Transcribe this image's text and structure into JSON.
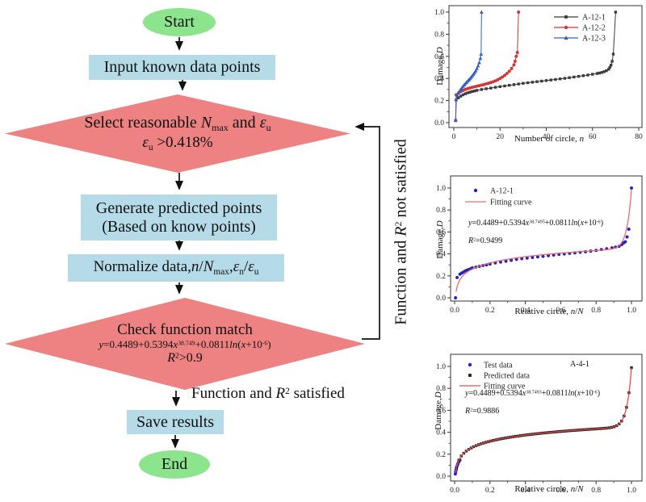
{
  "figure": {
    "flowchart": {
      "start": "Start",
      "input": "Input known data points",
      "decision1_line1_html": "Select reasonable <i>N</i><sub>max</sub> and <i>ε</i><sub>u</sub>",
      "decision1_line2_html": "<i>ε</i><sub>u</sub> &gt;0.418%",
      "generate_line1": "Generate predicted points",
      "generate_line2": "(Based on know points)",
      "normalize_html": "Normalize data,<i>n</i>/<i>N</i><sub>max</sub>,<i>ε</i><sub>n</sub>/<i>ε</i><sub>u</sub>",
      "decision2_line1": "Check function match",
      "decision2_eq_html": "<i>y</i>=0.4489+0.5394<i>x</i><sup>38.749</sup>+0.0811<i>ln</i>(<i>x</i>+10<sup>-6</sup>)",
      "decision2_r2_html": "<i>R</i><sup>2</sup>&gt;0.9",
      "satisfied_html": "Function and <i>R</i><sup>2</sup> satisfied",
      "not_satisfied_html": "Function and <i>R</i><sup>2</sup> not satisfied",
      "save": "Save results",
      "end": "End",
      "colors": {
        "terminal": "#8CE48C",
        "process": "#B5DBE9",
        "decision": "#EE8181"
      }
    },
    "chart_data": [
      {
        "type": "scatter",
        "title": "",
        "xlabel_html": "Number of circle, <i>n</i>",
        "ylabel_html": "Damage,<i>D</i>",
        "xlim": [
          0,
          80
        ],
        "ylim": [
          0,
          1
        ],
        "xticks": [
          0,
          20,
          40,
          60,
          80
        ],
        "xminor": [
          10,
          30,
          50,
          70
        ],
        "yticks": [
          0,
          0.2,
          0.4,
          0.6,
          0.8,
          1
        ],
        "yminor": [
          0.1,
          0.3,
          0.5,
          0.7,
          0.9
        ],
        "xdec": 0,
        "ydec": 1,
        "grid": false,
        "legend_position": "top-right",
        "series": [
          {
            "name": "A-12-1",
            "color": "#3b3b3b",
            "marker": "square",
            "line": true,
            "points": [
              [
                0.8,
                0.02
              ],
              [
                1,
                0.205
              ],
              [
                2,
                0.225
              ],
              [
                3,
                0.24
              ],
              [
                4,
                0.252
              ],
              [
                5,
                0.262
              ],
              [
                6,
                0.27
              ],
              [
                7,
                0.276
              ],
              [
                8,
                0.282
              ],
              [
                9,
                0.287
              ],
              [
                10,
                0.292
              ],
              [
                12,
                0.3
              ],
              [
                14,
                0.307
              ],
              [
                16,
                0.313
              ],
              [
                18,
                0.32
              ],
              [
                20,
                0.326
              ],
              [
                22,
                0.332
              ],
              [
                24,
                0.338
              ],
              [
                26,
                0.344
              ],
              [
                28,
                0.35
              ],
              [
                30,
                0.356
              ],
              [
                32,
                0.361
              ],
              [
                34,
                0.366
              ],
              [
                36,
                0.371
              ],
              [
                38,
                0.376
              ],
              [
                40,
                0.381
              ],
              [
                42,
                0.386
              ],
              [
                44,
                0.391
              ],
              [
                46,
                0.396
              ],
              [
                48,
                0.401
              ],
              [
                50,
                0.407
              ],
              [
                52,
                0.413
              ],
              [
                54,
                0.419
              ],
              [
                56,
                0.425
              ],
              [
                58,
                0.431
              ],
              [
                60,
                0.438
              ],
              [
                62,
                0.445
              ],
              [
                63,
                0.449
              ],
              [
                64,
                0.454
              ],
              [
                65,
                0.461
              ],
              [
                66,
                0.47
              ],
              [
                67,
                0.483
              ],
              [
                67.5,
                0.5
              ],
              [
                68,
                0.52
              ],
              [
                68.5,
                0.555
              ],
              [
                69,
                0.62
              ],
              [
                70,
                1.0
              ]
            ]
          },
          {
            "name": "A-12-2",
            "color": "#d53434",
            "marker": "circle",
            "line": true,
            "points": [
              [
                0.8,
                0.02
              ],
              [
                1,
                0.252
              ],
              [
                2,
                0.268
              ],
              [
                3,
                0.281
              ],
              [
                4,
                0.292
              ],
              [
                5,
                0.301
              ],
              [
                6,
                0.308
              ],
              [
                7,
                0.314
              ],
              [
                8,
                0.32
              ],
              [
                9,
                0.325
              ],
              [
                10,
                0.33
              ],
              [
                11,
                0.335
              ],
              [
                12,
                0.34
              ],
              [
                13,
                0.345
              ],
              [
                14,
                0.351
              ],
              [
                15,
                0.357
              ],
              [
                16,
                0.363
              ],
              [
                17,
                0.37
              ],
              [
                18,
                0.378
              ],
              [
                19,
                0.388
              ],
              [
                20,
                0.4
              ],
              [
                21,
                0.413
              ],
              [
                22,
                0.428
              ],
              [
                23,
                0.445
              ],
              [
                24,
                0.465
              ],
              [
                25,
                0.49
              ],
              [
                26,
                0.523
              ],
              [
                26.5,
                0.555
              ],
              [
                27,
                0.6
              ],
              [
                27.5,
                0.635
              ],
              [
                28,
                1.0
              ]
            ]
          },
          {
            "name": "A-12-3",
            "color": "#2f5fc4",
            "marker": "triangle",
            "line": true,
            "points": [
              [
                0.8,
                0.02
              ],
              [
                1,
                0.21
              ],
              [
                1.5,
                0.248
              ],
              [
                2,
                0.27
              ],
              [
                2.5,
                0.287
              ],
              [
                3,
                0.301
              ],
              [
                3.5,
                0.315
              ],
              [
                4,
                0.329
              ],
              [
                4.5,
                0.342
              ],
              [
                5,
                0.354
              ],
              [
                5.5,
                0.365
              ],
              [
                6,
                0.376
              ],
              [
                6.5,
                0.387
              ],
              [
                7,
                0.398
              ],
              [
                7.5,
                0.411
              ],
              [
                8,
                0.424
              ],
              [
                8.5,
                0.438
              ],
              [
                9,
                0.453
              ],
              [
                9.5,
                0.47
              ],
              [
                10,
                0.49
              ],
              [
                10.5,
                0.514
              ],
              [
                11,
                0.543
              ],
              [
                11.5,
                0.582
              ],
              [
                11.8,
                0.62
              ],
              [
                12,
                1.0
              ]
            ]
          }
        ]
      },
      {
        "type": "scatter",
        "title": "",
        "xlabel_html": "Relative circle, <i>n</i>/<i>N</i>",
        "ylabel_html": "Damage,<i>D</i>",
        "xlim": [
          0,
          1
        ],
        "ylim": [
          0,
          1
        ],
        "xticks": [
          0,
          0.2,
          0.4,
          0.6,
          0.8,
          1
        ],
        "xminor": [
          0.1,
          0.3,
          0.5,
          0.7,
          0.9
        ],
        "yticks": [
          0,
          0.2,
          0.4,
          0.6,
          0.8,
          1
        ],
        "yminor": [
          0.1,
          0.3,
          0.5,
          0.7,
          0.9
        ],
        "xdec": 1,
        "ydec": 1,
        "grid": false,
        "legend_position": "top-left",
        "annotations": {
          "equation_html": "<i>y</i>=0.4489+0.5394<i>x</i><sup>38.7495</sup>+0.0811<i>ln</i>(<i>x</i>+10<sup>-6</sup>)",
          "r2_html": "<i>R</i><sup>2</sup>=0.9499"
        },
        "series": [
          {
            "name": "A-12-1",
            "color": "#2424b4",
            "marker": "circle",
            "line": false,
            "points": [
              [
                0.005,
                0.0
              ],
              [
                0.014,
                0.185
              ],
              [
                0.03,
                0.215
              ],
              [
                0.04,
                0.225
              ],
              [
                0.05,
                0.235
              ],
              [
                0.06,
                0.245
              ],
              [
                0.07,
                0.252
              ],
              [
                0.08,
                0.258
              ],
              [
                0.09,
                0.264
              ],
              [
                0.1,
                0.272
              ],
              [
                0.12,
                0.28
              ],
              [
                0.14,
                0.287
              ],
              [
                0.16,
                0.295
              ],
              [
                0.18,
                0.3
              ],
              [
                0.2,
                0.308
              ],
              [
                0.23,
                0.318
              ],
              [
                0.26,
                0.326
              ],
              [
                0.29,
                0.334
              ],
              [
                0.32,
                0.342
              ],
              [
                0.35,
                0.35
              ],
              [
                0.38,
                0.357
              ],
              [
                0.41,
                0.362
              ],
              [
                0.44,
                0.368
              ],
              [
                0.47,
                0.373
              ],
              [
                0.5,
                0.378
              ],
              [
                0.53,
                0.384
              ],
              [
                0.56,
                0.39
              ],
              [
                0.59,
                0.396
              ],
              [
                0.62,
                0.4
              ],
              [
                0.65,
                0.405
              ],
              [
                0.68,
                0.41
              ],
              [
                0.71,
                0.415
              ],
              [
                0.74,
                0.42
              ],
              [
                0.77,
                0.426
              ],
              [
                0.8,
                0.432
              ],
              [
                0.83,
                0.44
              ],
              [
                0.86,
                0.447
              ],
              [
                0.89,
                0.455
              ],
              [
                0.91,
                0.462
              ],
              [
                0.93,
                0.47
              ],
              [
                0.945,
                0.485
              ],
              [
                0.955,
                0.5
              ],
              [
                0.965,
                0.51
              ],
              [
                0.975,
                0.555
              ],
              [
                0.985,
                0.625
              ],
              [
                1.0,
                1.0
              ]
            ]
          },
          {
            "name": "Fitting curve",
            "color": "#ee6a6a",
            "marker": null,
            "line": true,
            "formula": {
              "a": 0.4489,
              "b": 0.5394,
              "p": 38.7495,
              "c": 0.0811,
              "x0": 0.008,
              "x1": 1.0,
              "n": 240
            }
          }
        ]
      },
      {
        "type": "scatter",
        "title": "A-4-1",
        "xlabel_html": "Relative circle, <i>n</i>/<i>N</i>",
        "ylabel_html": "Damage,<i>D</i>",
        "xlim": [
          0,
          1
        ],
        "ylim": [
          0,
          1
        ],
        "xticks": [
          0,
          0.2,
          0.4,
          0.6,
          0.8,
          1
        ],
        "xminor": [
          0.1,
          0.3,
          0.5,
          0.7,
          0.9
        ],
        "yticks": [
          0,
          0.2,
          0.4,
          0.6,
          0.8,
          1
        ],
        "yminor": [
          0.1,
          0.3,
          0.5,
          0.7,
          0.9
        ],
        "xdec": 1,
        "ydec": 1,
        "grid": false,
        "legend_position": "top-left",
        "annotations": {
          "equation_html": "<i>y</i>=0.4489+0.5394<i>x</i><sup>38.7493</sup>+0.0811<i>ln</i>(<i>x</i>+10<sup>-6</sup>)",
          "r2_html": "<i>R</i><sup>2</sup>=0.9886",
          "panel_label": "A-4-1"
        },
        "series": [
          {
            "name": "Test data",
            "color": "#2222cc",
            "marker": "circle",
            "line": false,
            "points": [
              [
                0.004,
                0.02
              ],
              [
                0.006,
                0.04
              ],
              [
                0.008,
                0.055
              ],
              [
                0.01,
                0.068
              ],
              [
                0.013,
                0.087
              ],
              [
                0.016,
                0.103
              ],
              [
                0.019,
                0.116
              ],
              [
                0.022,
                0.127
              ],
              [
                0.026,
                0.138
              ],
              [
                0.03,
                0.148
              ]
            ]
          },
          {
            "name": "Predicted data",
            "color": "#1c1c1c",
            "marker": "square",
            "line": false,
            "formula": {
              "a": 0.4489,
              "b": 0.5394,
              "p": 38.7493,
              "c": 0.0811,
              "x0": 0.01,
              "x1": 1.0,
              "n": 72
            }
          },
          {
            "name": "Fitting curve",
            "color": "#e64c4c",
            "marker": null,
            "line": true,
            "formula": {
              "a": 0.4489,
              "b": 0.5394,
              "p": 38.7493,
              "c": 0.0811,
              "x0": 0.006,
              "x1": 1.0,
              "n": 240
            }
          }
        ]
      }
    ]
  }
}
